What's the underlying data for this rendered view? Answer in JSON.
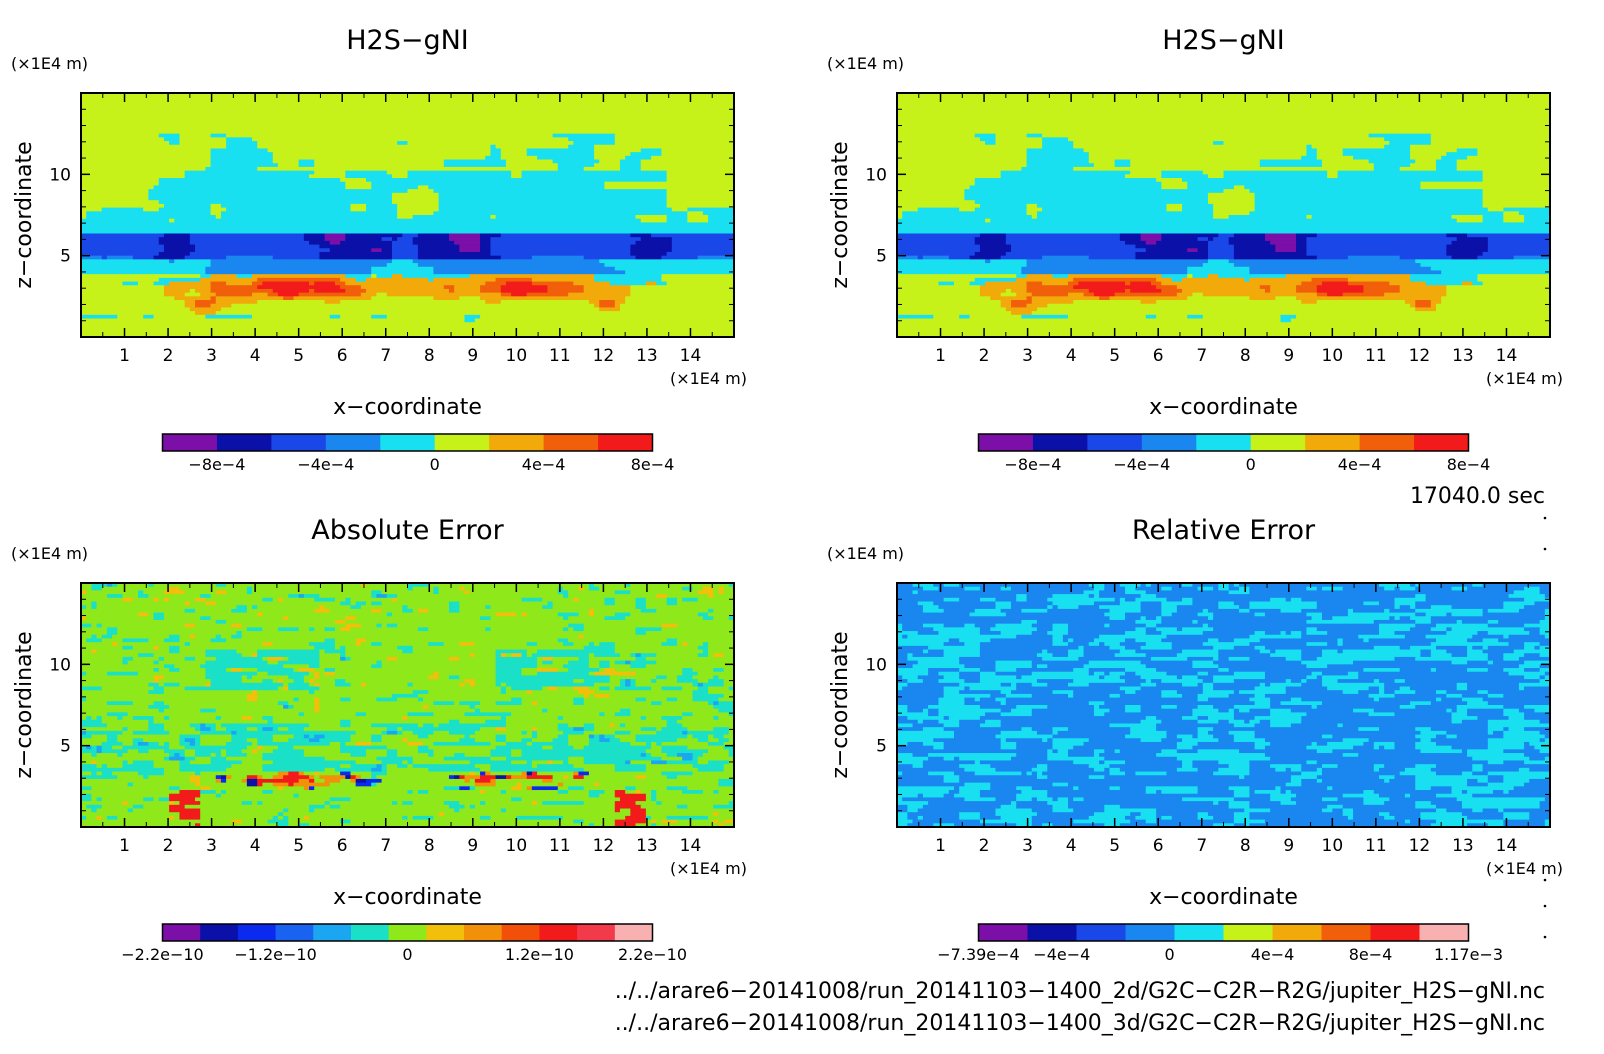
{
  "chart_data": [
    {
      "type": "heatmap",
      "title": "H2S−gNI",
      "unit_label": "(×1E4 m)",
      "xlabel": "x−coordinate",
      "ylabel": "z−coordinate",
      "x_unit": "(×1E4 m)",
      "xlim": [
        0,
        15
      ],
      "ylim": [
        0,
        15
      ],
      "x_ticks": [
        "1",
        "2",
        "3",
        "4",
        "5",
        "6",
        "7",
        "8",
        "9",
        "10",
        "11",
        "12",
        "13",
        "14"
      ],
      "y_ticks": [
        "5",
        "10"
      ],
      "colorbar": {
        "colors": [
          "#7b0fa8",
          "#0a10a8",
          "#1a48e8",
          "#1a86f0",
          "#19e0f0",
          "#c6f21a",
          "#f2a90a",
          "#f25f0a",
          "#f21a1a"
        ],
        "tick_labels": [
          "−8e−4",
          "−4e−4",
          "0",
          "4e−4",
          "8e−4"
        ]
      },
      "pattern": "field"
    },
    {
      "type": "heatmap",
      "title": "H2S−gNI",
      "unit_label": "(×1E4 m)",
      "xlabel": "x−coordinate",
      "ylabel": "z−coordinate",
      "x_unit": "(×1E4 m)",
      "xlim": [
        0,
        15
      ],
      "ylim": [
        0,
        15
      ],
      "x_ticks": [
        "1",
        "2",
        "3",
        "4",
        "5",
        "6",
        "7",
        "8",
        "9",
        "10",
        "11",
        "12",
        "13",
        "14"
      ],
      "y_ticks": [
        "5",
        "10"
      ],
      "colorbar": {
        "colors": [
          "#7b0fa8",
          "#0a10a8",
          "#1a48e8",
          "#1a86f0",
          "#19e0f0",
          "#c6f21a",
          "#f2a90a",
          "#f25f0a",
          "#f21a1a"
        ],
        "tick_labels": [
          "−8e−4",
          "−4e−4",
          "0",
          "4e−4",
          "8e−4"
        ]
      },
      "pattern": "field"
    },
    {
      "type": "heatmap",
      "title": "Absolute Error",
      "unit_label": "(×1E4 m)",
      "xlabel": "x−coordinate",
      "ylabel": "z−coordinate",
      "x_unit": "(×1E4 m)",
      "xlim": [
        0,
        15
      ],
      "ylim": [
        0,
        15
      ],
      "x_ticks": [
        "1",
        "2",
        "3",
        "4",
        "5",
        "6",
        "7",
        "8",
        "9",
        "10",
        "11",
        "12",
        "13",
        "14"
      ],
      "y_ticks": [
        "5",
        "10"
      ],
      "colorbar": {
        "colors": [
          "#7b0fa8",
          "#0a10a8",
          "#0a2af0",
          "#1a62f0",
          "#1aa6f0",
          "#1ae0c8",
          "#8ee81a",
          "#f2c00a",
          "#f2900a",
          "#f2500a",
          "#f21a1a",
          "#f23a4a",
          "#f8b0b0"
        ],
        "tick_labels": [
          "−2.2e−10",
          "−1.2e−10",
          "0",
          "1.2e−10",
          "2.2e−10"
        ]
      },
      "pattern": "abs"
    },
    {
      "type": "heatmap",
      "title": "Relative Error",
      "unit_label": "(×1E4 m)",
      "xlabel": "x−coordinate",
      "ylabel": "z−coordinate",
      "x_unit": "(×1E4 m)",
      "xlim": [
        0,
        15
      ],
      "ylim": [
        0,
        15
      ],
      "x_ticks": [
        "1",
        "2",
        "3",
        "4",
        "5",
        "6",
        "7",
        "8",
        "9",
        "10",
        "11",
        "12",
        "13",
        "14"
      ],
      "y_ticks": [
        "5",
        "10"
      ],
      "colorbar": {
        "colors": [
          "#7b0fa8",
          "#0a10a8",
          "#1a48e8",
          "#1a86f0",
          "#19e0f0",
          "#c6f21a",
          "#f2a90a",
          "#f25f0a",
          "#f21a1a",
          "#f8b0b0"
        ],
        "tick_labels": [
          "−7.39e−4",
          "−4e−4",
          "0",
          "4e−4",
          "8e−4",
          "1.17e−3"
        ]
      },
      "pattern": "rel"
    }
  ],
  "time_label": "17040.0 sec",
  "file_paths": [
    "../../arare6−20141008/run_20141103−1400_2d/G2C−C2R−R2G/jupiter_H2S−gNI.nc",
    "../../arare6−20141008/run_20141103−1400_3d/G2C−C2R−R2G/jupiter_H2S−gNI.nc"
  ]
}
